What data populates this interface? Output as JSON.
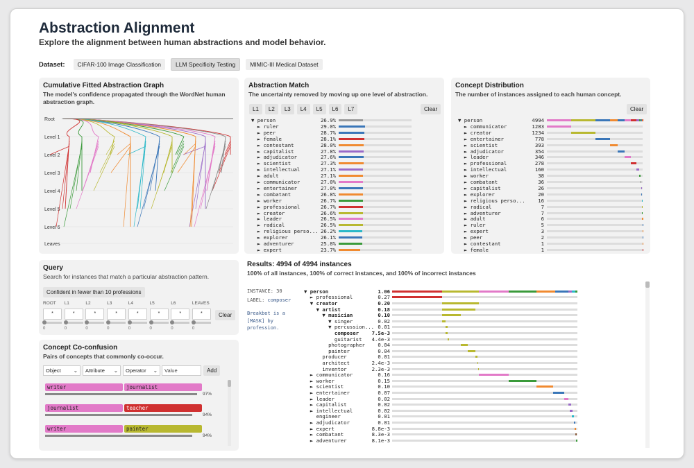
{
  "title": "Abstraction Alignment",
  "subtitle": "Explore the alignment between human abstractions and model behavior.",
  "dataset": {
    "label": "Dataset:",
    "options": [
      "CIFAR-100 Image Classification",
      "LLM Specificity Testing",
      "MIMIC-III Medical Dataset"
    ],
    "active": 1
  },
  "graph": {
    "title": "Cumulative Fitted Abstraction Graph",
    "desc": "The model's confidence propagated through the WordNet human abstraction graph.",
    "levels": [
      "Root",
      "Level 1",
      "Level 2",
      "Level 3",
      "Level 4",
      "Level 5",
      "Level 6",
      "Leaves"
    ]
  },
  "match": {
    "title": "Abstraction Match",
    "desc": "The uncertainty removed by moving up one level of abstraction.",
    "levels": [
      "L1",
      "L2",
      "L3",
      "L4",
      "L5",
      "L6",
      "L7"
    ],
    "clear": "Clear",
    "rows": [
      {
        "name": "▼ person",
        "val": "26.9%",
        "color": "#999999",
        "frac": 0.27
      },
      {
        "name": "  ► ruler",
        "val": "29.0%",
        "color": "#3a76b8",
        "frac": 0.29
      },
      {
        "name": "  ► peer",
        "val": "28.7%",
        "color": "#3a76b8",
        "frac": 0.287
      },
      {
        "name": "  ► female",
        "val": "28.1%",
        "color": "#d03030",
        "frac": 0.281
      },
      {
        "name": "  ► contestant",
        "val": "28.0%",
        "color": "#f08a30",
        "frac": 0.28
      },
      {
        "name": "  ► capitalist",
        "val": "27.8%",
        "color": "#9a6ac8",
        "frac": 0.278
      },
      {
        "name": "  ► adjudicator",
        "val": "27.6%",
        "color": "#3a76b8",
        "frac": 0.276
      },
      {
        "name": "  ► scientist",
        "val": "27.3%",
        "color": "#f08a30",
        "frac": 0.273
      },
      {
        "name": "  ► intellectual",
        "val": "27.1%",
        "color": "#9a6ac8",
        "frac": 0.271
      },
      {
        "name": "  ► adult",
        "val": "27.1%",
        "color": "#f08a30",
        "frac": 0.271
      },
      {
        "name": "  ► communicator",
        "val": "27.0%",
        "color": "#e27ac8",
        "frac": 0.27
      },
      {
        "name": "  ► entertainer",
        "val": "27.0%",
        "color": "#3a76b8",
        "frac": 0.27
      },
      {
        "name": "  ► combatant",
        "val": "26.8%",
        "color": "#f08a30",
        "frac": 0.268
      },
      {
        "name": "  ► worker",
        "val": "26.7%",
        "color": "#3a9a3a",
        "frac": 0.267
      },
      {
        "name": "  ► professional",
        "val": "26.7%",
        "color": "#d03030",
        "frac": 0.267
      },
      {
        "name": "  ► creator",
        "val": "26.6%",
        "color": "#b8b830",
        "frac": 0.266
      },
      {
        "name": "  ► leader",
        "val": "26.5%",
        "color": "#e27ac8",
        "frac": 0.265
      },
      {
        "name": "  ► radical",
        "val": "26.5%",
        "color": "#b8b830",
        "frac": 0.265
      },
      {
        "name": "  ► religious perso...",
        "val": "26.2%",
        "color": "#2ab8c8",
        "frac": 0.262
      },
      {
        "name": "  ► explorer",
        "val": "26.1%",
        "color": "#3a76b8",
        "frac": 0.261
      },
      {
        "name": "  ► adventurer",
        "val": "25.8%",
        "color": "#3a9a3a",
        "frac": 0.258
      },
      {
        "name": "  ► expert",
        "val": "23.7%",
        "color": "#f08a30",
        "frac": 0.237
      }
    ]
  },
  "dist": {
    "title": "Concept Distribution",
    "desc": "The number of instances assigned to each human concept.",
    "clear": "Clear",
    "rows": [
      {
        "name": "▼ person",
        "val": "4994"
      },
      {
        "name": "  ► communicator",
        "val": "1283",
        "color": "#e27ac8",
        "start": 0,
        "frac": 0.257
      },
      {
        "name": "  ► creator",
        "val": "1234",
        "color": "#b8b830",
        "start": 0.257,
        "frac": 0.247
      },
      {
        "name": "  ► entertainer",
        "val": "778",
        "color": "#3a76b8",
        "start": 0.504,
        "frac": 0.156
      },
      {
        "name": "  ► scientist",
        "val": "393",
        "color": "#f08a30",
        "start": 0.66,
        "frac": 0.079
      },
      {
        "name": "  ► adjudicator",
        "val": "354",
        "color": "#3a76b8",
        "start": 0.739,
        "frac": 0.071
      },
      {
        "name": "  ► leader",
        "val": "346",
        "color": "#e27ac8",
        "start": 0.81,
        "frac": 0.069
      },
      {
        "name": "  ► professional",
        "val": "278",
        "color": "#d03030",
        "start": 0.879,
        "frac": 0.056
      },
      {
        "name": "  ► intellectual",
        "val": "160",
        "color": "#9a6ac8",
        "start": 0.935,
        "frac": 0.032
      },
      {
        "name": "  ► worker",
        "val": "38",
        "color": "#3a9a3a",
        "start": 0.967,
        "frac": 0.008
      },
      {
        "name": "  ► combatant",
        "val": "36",
        "color": "#888",
        "start": 0.975,
        "frac": 0.007
      },
      {
        "name": "  ► capitalist",
        "val": "26",
        "color": "#9a6ac8",
        "start": 0.982,
        "frac": 0.005
      },
      {
        "name": "  ► explorer",
        "val": "20",
        "color": "#3a76b8",
        "start": 0.987,
        "frac": 0.004
      },
      {
        "name": "  ► religious perso...",
        "val": "16",
        "color": "#2ab8c8",
        "start": 0.991,
        "frac": 0.003
      },
      {
        "name": "  ► radical",
        "val": "7",
        "color": "#b8b830",
        "start": 0.994,
        "frac": 0.0015
      },
      {
        "name": "  ► adventurer",
        "val": "7",
        "color": "#3a9a3a",
        "start": 0.995,
        "frac": 0.0015
      },
      {
        "name": "  ► adult",
        "val": "6",
        "color": "#f08a30",
        "start": 0.996,
        "frac": 0.0012
      },
      {
        "name": "  ► ruler",
        "val": "5",
        "color": "#3a76b8",
        "start": 0.997,
        "frac": 0.001
      },
      {
        "name": "  ► expert",
        "val": "3",
        "color": "#f08a30",
        "start": 0.998,
        "frac": 0.0006
      },
      {
        "name": "  ► peer",
        "val": "2",
        "color": "#3a76b8",
        "start": 0.9985,
        "frac": 0.0004
      },
      {
        "name": "  ► contestant",
        "val": "1",
        "color": "#f08a30",
        "start": 0.999,
        "frac": 0.0002
      },
      {
        "name": "  ► female",
        "val": "1",
        "color": "#d03030",
        "start": 0.9995,
        "frac": 0.0002
      }
    ]
  },
  "query": {
    "title": "Query",
    "desc": "Search for instances that match a particular abstraction pattern.",
    "preset": "Confident in fewer than 10 professions",
    "cols": [
      "ROOT",
      "L1",
      "L2",
      "L3",
      "L4",
      "L5",
      "L6",
      "LEAVES"
    ],
    "value": "*",
    "slider_val": "0",
    "clear": "Clear"
  },
  "cocon": {
    "title": "Concept Co-confusion",
    "desc": "Pairs of concepts that commonly co-occur.",
    "selects": [
      "Object",
      "Attribute",
      "Operator"
    ],
    "value_placeholder": "Value",
    "add": "Add",
    "pairs": [
      {
        "a": "writer",
        "b": "journalist",
        "a_color": "#e27ac8",
        "b_color": "#e27ac8",
        "pct": "97%"
      },
      {
        "a": "journalist",
        "b": "teacher",
        "a_color": "#e27ac8",
        "b_color": "#d03030",
        "pct": "94%",
        "b_text": "#fff"
      },
      {
        "a": "writer",
        "b": "painter",
        "a_color": "#e27ac8",
        "b_color": "#b8b830",
        "pct": "94%"
      }
    ]
  },
  "results": {
    "title": "Results: 4994 of 4994 instances",
    "desc": "100% of all instances, 100% of correct instances, and 100% of incorrect instances",
    "instance_label": "INSTANCE:",
    "instance": "30",
    "label_label": "LABEL:",
    "label": "composer",
    "prompt": "Breakbot is a [MASK] by profession.",
    "rows": [
      {
        "name": "▼ person",
        "val": "1.06",
        "bold": true,
        "segs": [
          [
            "#d03030",
            0,
            0.27
          ],
          [
            "#b8b830",
            0.27,
            0.2
          ],
          [
            "#e27ac8",
            0.47,
            0.16
          ],
          [
            "#3a9a3a",
            0.63,
            0.15
          ],
          [
            "#f08a30",
            0.78,
            0.1
          ],
          [
            "#3a76b8",
            0.88,
            0.07
          ],
          [
            "#9a6ac8",
            0.95,
            0.02
          ],
          [
            "#2ab8c8",
            0.97,
            0.02
          ],
          [
            "#3a9a3a",
            0.99,
            0.01
          ]
        ]
      },
      {
        "name": "  ► professional",
        "val": "0.27",
        "segs": [
          [
            "#d03030",
            0,
            0.27
          ]
        ]
      },
      {
        "name": "  ▼ creator",
        "val": "0.20",
        "bold": true,
        "segs": [
          [
            "#b8b830",
            0.27,
            0.2
          ]
        ]
      },
      {
        "name": "    ▼ artist",
        "val": "0.18",
        "bold": true,
        "segs": [
          [
            "#b8b830",
            0.27,
            0.18
          ]
        ]
      },
      {
        "name": "      ▼ musician",
        "val": "0.10",
        "bold": true,
        "segs": [
          [
            "#b8b830",
            0.27,
            0.1
          ]
        ]
      },
      {
        "name": "        ▼ singer",
        "val": "0.02",
        "segs": [
          [
            "#b8b830",
            0.27,
            0.02
          ]
        ]
      },
      {
        "name": "        ▼ percussion...",
        "val": "0.01",
        "segs": [
          [
            "#b8b830",
            0.29,
            0.01
          ]
        ]
      },
      {
        "name": "          composer",
        "val": "7.5e-3",
        "bold": true,
        "segs": [
          [
            "#b8b830",
            0.29,
            0.008
          ]
        ]
      },
      {
        "name": "          guitarist",
        "val": "4.4e-3",
        "segs": [
          [
            "#b8b830",
            0.3,
            0.005
          ]
        ]
      },
      {
        "name": "        photographer",
        "val": "0.04",
        "segs": [
          [
            "#b8b830",
            0.37,
            0.04
          ]
        ]
      },
      {
        "name": "        painter",
        "val": "0.04",
        "segs": [
          [
            "#b8b830",
            0.41,
            0.04
          ]
        ]
      },
      {
        "name": "      producer",
        "val": "0.01",
        "segs": [
          [
            "#b8b830",
            0.45,
            0.01
          ]
        ]
      },
      {
        "name": "      architect",
        "val": "2.4e-3",
        "segs": [
          [
            "#b8b830",
            0.46,
            0.003
          ]
        ]
      },
      {
        "name": "      inventor",
        "val": "2.3e-3",
        "segs": [
          [
            "#b8b830",
            0.463,
            0.003
          ]
        ]
      },
      {
        "name": "  ► communicator",
        "val": "0.16",
        "segs": [
          [
            "#e27ac8",
            0.47,
            0.16
          ]
        ]
      },
      {
        "name": "  ► worker",
        "val": "0.15",
        "segs": [
          [
            "#3a9a3a",
            0.63,
            0.15
          ]
        ]
      },
      {
        "name": "  ► scientist",
        "val": "0.10",
        "segs": [
          [
            "#f08a30",
            0.78,
            0.09
          ]
        ]
      },
      {
        "name": "  ► entertainer",
        "val": "0.07",
        "segs": [
          [
            "#3a76b8",
            0.87,
            0.06
          ]
        ]
      },
      {
        "name": "  ► leader",
        "val": "0.02",
        "segs": [
          [
            "#e27ac8",
            0.93,
            0.02
          ]
        ]
      },
      {
        "name": "  ► capitalist",
        "val": "0.02",
        "segs": [
          [
            "#9a6ac8",
            0.95,
            0.015
          ]
        ]
      },
      {
        "name": "  ► intellectual",
        "val": "0.02",
        "segs": [
          [
            "#9a6ac8",
            0.96,
            0.015
          ]
        ]
      },
      {
        "name": "    engineer",
        "val": "0.01",
        "segs": [
          [
            "#2ab8c8",
            0.97,
            0.01
          ]
        ]
      },
      {
        "name": "  ► adjudicator",
        "val": "0.01",
        "segs": [
          [
            "#3a76b8",
            0.98,
            0.008
          ]
        ]
      },
      {
        "name": "  ► expert",
        "val": "8.8e-3",
        "segs": [
          [
            "#f08a30",
            0.985,
            0.006
          ]
        ]
      },
      {
        "name": "  ► combatant",
        "val": "8.3e-3",
        "segs": [
          [
            "#8a5a3a",
            0.99,
            0.005
          ]
        ]
      },
      {
        "name": "  ► adventurer",
        "val": "8.1e-3",
        "segs": [
          [
            "#3a9a3a",
            0.993,
            0.005
          ]
        ]
      }
    ]
  }
}
